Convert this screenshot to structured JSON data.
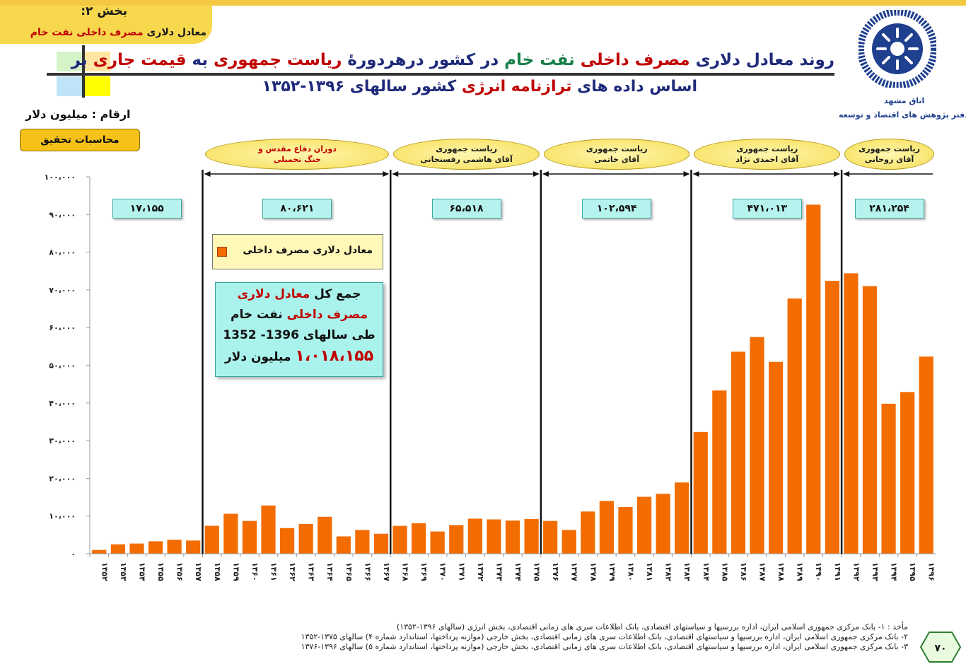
{
  "header": {
    "section_no": "بخش ۲:",
    "section_sub_black": "معادل دلاری",
    "section_sub_red": "مصرف داخلی نفت خام",
    "title_line1_parts": [
      {
        "text": "روند ",
        "color": "dark"
      },
      {
        "text": "معادل دلاری ",
        "color": "dark"
      },
      {
        "text": "مصرف داخلی ",
        "color": "red"
      },
      {
        "text": "نفت خام ",
        "color": "green"
      },
      {
        "text": "در کشور درهردورۀ ",
        "color": "dark"
      },
      {
        "text": "ریاست جمهوری ",
        "color": "red"
      },
      {
        "text": "به ",
        "color": "dark"
      },
      {
        "text": "قیمت جاری ",
        "color": "red"
      },
      {
        "text": "بر",
        "color": "dark"
      }
    ],
    "title_line2_parts": [
      {
        "text": "اساس داده های ",
        "color": "dark"
      },
      {
        "text": "ترازنامه انرژی ",
        "color": "red"
      },
      {
        "text": "کشور سالهای ۱۳۹۶-۱۳۵۲",
        "color": "dark"
      }
    ],
    "org_name": "اتاق مشهد",
    "org_dept": "دفتر پژوهش های اقتصاد و توسعه",
    "units": "ارقام : میلیون دلار",
    "calc_label": "محاسبات تحقیق",
    "logo_icon": "chamber-of-commerce-logo-icon"
  },
  "colors": {
    "bar": "#f36c00",
    "title": "#1f2a7a",
    "highlight": "#c00000",
    "green": "#17804a",
    "period_label_bg": "#f6dd55",
    "total_box_bg": "#b7f3ee"
  },
  "periods": [
    {
      "label_lines": [
        "دوران دفاع مقدس و",
        "جنگ تحمیلی"
      ],
      "red": true,
      "total": "۸۰،۶۲۱"
    },
    {
      "label_lines": [
        "ریاست جمهوری",
        "آقای هاشمی رفسنجانی"
      ],
      "red": false,
      "total": "۶۵،۵۱۸"
    },
    {
      "label_lines": [
        "ریاست جمهوری",
        "آقای خاتمی"
      ],
      "red": false,
      "total": "۱۰۲،۵۹۴"
    },
    {
      "label_lines": [
        "ریاست جمهوری",
        "آقای احمدی نژاد"
      ],
      "red": false,
      "total": "۴۷۱،۰۱۳"
    },
    {
      "label_lines": [
        "ریاست جمهوری",
        "آقای روحانی"
      ],
      "red": false,
      "total": "۲۸۱،۲۵۴"
    }
  ],
  "pre_period_total": "۱۷،۱۵۵",
  "legend": {
    "label": "معادل دلاری مصرف داخلی"
  },
  "summary": {
    "line1_black": "جمع کل ",
    "line1_red": "معادل دلاری",
    "line2_red": "مصرف داخلی ",
    "line2_black": "نفت خام",
    "line3": "طی سالهای 1396- 1352",
    "line4_red": "۱،۰۱۸،۱۵۵",
    "line4_black": " میلیون دلار"
  },
  "sources": [
    "مأخذ : ۱- بانک مرکزی جمهوری اسلامی ایران، اداره بررسیها و سیاستهای اقتصادی، بانک اطلاعات سری های زمانی اقتصادی، بخش انرژی (سالهای ۱۳۹۶-۱۳۵۲)",
    "۲- بانک مرکزی جمهوری اسلامی ایران، اداره بررسیها و سیاستهای اقتصادی، بانک اطلاعات سری های زمانی اقتصادی، بخش خارجی (موازنه پرداختها، استاندارد شماره ۴) سالهای ۱۳۷۵-۱۳۵۲",
    "۳- بانک مرکزی جمهوری اسلامی ایران، اداره بررسیها و سیاستهای اقتصادی، بانک اطلاعات سری های زمانی اقتصادی، بخش خارجی (موازنه پرداختها، استاندارد شماره ۵) سالهای ۱۳۹۶-۱۳۷۶"
  ],
  "page_number": "۷۰",
  "chart_data": {
    "type": "bar",
    "title": "",
    "xlabel": "",
    "ylabel": "",
    "ylim": [
      0,
      100000
    ],
    "y_ticks": [
      0,
      10000,
      20000,
      30000,
      40000,
      50000,
      60000,
      70000,
      80000,
      90000,
      100000
    ],
    "y_tick_labels": [
      "۰",
      "۱۰،۰۰۰",
      "۲۰،۰۰۰",
      "۳۰،۰۰۰",
      "۴۰،۰۰۰",
      "۵۰،۰۰۰",
      "۶۰،۰۰۰",
      "۷۰،۰۰۰",
      "۸۰،۰۰۰",
      "۹۰،۰۰۰",
      "۱۰۰،۰۰۰"
    ],
    "grid": false,
    "legend_position": "top-left",
    "categories": [
      "۱۳۵۲",
      "۱۳۵۳",
      "۱۳۵۴",
      "۱۳۵۵",
      "۱۳۵۶",
      "۱۳۵۷",
      "۱۳۵۸",
      "۱۳۵۹",
      "۱۳۶۰",
      "۱۳۶۱",
      "۱۳۶۲",
      "۱۳۶۳",
      "۱۳۶۴",
      "۱۳۶۵",
      "۱۳۶۶",
      "۱۳۶۷",
      "۱۳۶۸",
      "۱۳۶۹",
      "۱۳۷۰",
      "۱۳۷۱",
      "۱۳۷۲",
      "۱۳۷۳",
      "۱۳۷۴",
      "۱۳۷۵",
      "۱۳۷۶",
      "۱۳۷۷",
      "۱۳۷۸",
      "۱۳۷۹",
      "۱۳۸۰",
      "۱۳۸۱",
      "۱۳۸۲",
      "۱۳۸۳",
      "۱۳۸۴",
      "۱۳۸۵",
      "۱۳۸۶",
      "۱۳۸۷",
      "۱۳۸۸",
      "۱۳۸۹",
      "۱۳۹۰",
      "۱۳۹۱",
      "۱۳۹۲",
      "۱۳۹۳",
      "۱۳۹۴",
      "۱۳۹۵",
      "۱۳۹۶"
    ],
    "series": [
      {
        "name": "معادل دلاری مصرف داخلی",
        "values": [
          1000,
          2500,
          2700,
          3300,
          3700,
          3500,
          7400,
          10600,
          8700,
          12800,
          6800,
          7900,
          9800,
          4600,
          6300,
          5300,
          7400,
          8100,
          5900,
          7600,
          9300,
          9100,
          8800,
          9200,
          8700,
          6300,
          11200,
          14000,
          12400,
          15100,
          15900,
          18900,
          32300,
          43300,
          53600,
          57500,
          50900,
          67700,
          92600,
          72400,
          74400,
          71000,
          39800,
          42900,
          52300
        ]
      }
    ],
    "period_boundaries_after_index": [
      5,
      15,
      23,
      31,
      39
    ]
  }
}
